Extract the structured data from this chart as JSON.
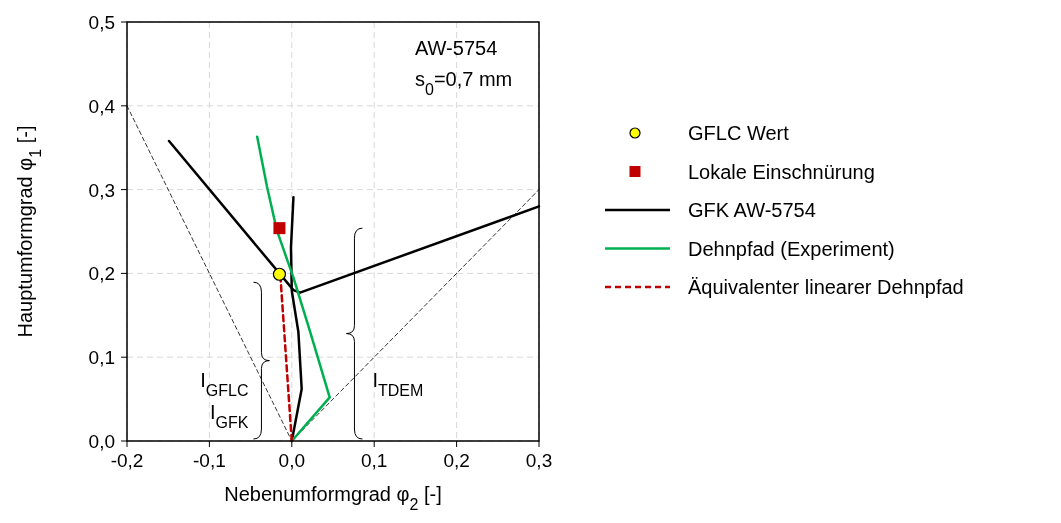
{
  "chart_data": {
    "type": "line",
    "xlabel": "Nebenumformgrad φ$_{2}$ [-]",
    "ylabel": "Hauptumformgrad φ$_{1}$ [-]",
    "xlim": [
      -0.2,
      0.3
    ],
    "ylim": [
      0,
      0.5
    ],
    "xticks": [
      {
        "value": -0.2,
        "label": "-0,2"
      },
      {
        "value": -0.1,
        "label": "-0,1"
      },
      {
        "value": 0,
        "label": "0,0"
      },
      {
        "value": 0.1,
        "label": "0,1"
      },
      {
        "value": 0.2,
        "label": "0,2"
      },
      {
        "value": 0.3,
        "label": "0,3"
      }
    ],
    "yticks": [
      {
        "value": 0,
        "label": "0,0"
      },
      {
        "value": 0.1,
        "label": "0,1"
      },
      {
        "value": 0.2,
        "label": "0,2"
      },
      {
        "value": 0.3,
        "label": "0,3"
      },
      {
        "value": 0.4,
        "label": "0,4"
      },
      {
        "value": 0.5,
        "label": "0,5"
      }
    ],
    "grid": true,
    "legend": "right",
    "series": [
      {
        "color": "#000000",
        "line_style": "dashed",
        "x": [
          -0.2,
          0
        ],
        "values": [
          0.4,
          0
        ]
      },
      {
        "color": "#000000",
        "line_style": "dashed",
        "x": [
          0,
          0.3
        ],
        "values": [
          0,
          0.3
        ]
      },
      {
        "color": "#000000",
        "x": [
          0,
          0.012,
          0.008,
          0,
          -0.001,
          0.002
        ],
        "values": [
          0,
          0.062,
          0.13,
          0.179,
          0.231,
          0.291
        ]
      },
      {
        "name": "GFK AW-5754",
        "color": "#000000",
        "x": [
          -0.149,
          0.002,
          0.01,
          0.3
        ],
        "values": [
          0.358,
          0.18,
          0.177,
          0.28
        ]
      },
      {
        "name": "Dehnpfad (Experiment)",
        "color": "#00b050",
        "x": [
          0,
          0.046,
          0.022,
          0.002,
          -0.018,
          -0.03,
          -0.042
        ],
        "values": [
          0,
          0.052,
          0.131,
          0.195,
          0.251,
          0.303,
          0.363
        ]
      },
      {
        "name": "Äquivalenter linearer Dehnpfad",
        "color": "#c00000",
        "line_style": "dashed",
        "x": [
          0,
          -0.014
        ],
        "values": [
          0,
          0.199
        ]
      },
      {
        "type": "scatter",
        "name": "GFLC Wert",
        "color": "#ffff00",
        "marker": "circle",
        "x": [
          -0.015
        ],
        "values": [
          0.199
        ]
      },
      {
        "type": "scatter",
        "name": "Lokale Einschnürung",
        "color": "#c00000",
        "marker": "square",
        "x": [
          -0.015
        ],
        "values": [
          0.254
        ]
      }
    ],
    "annotations": [
      "I$_{GFLC}$",
      "I$_{GFK}$",
      "I$_{TDEM}$",
      "AW-5754",
      "s$_{0}$=0,7 mm"
    ]
  }
}
